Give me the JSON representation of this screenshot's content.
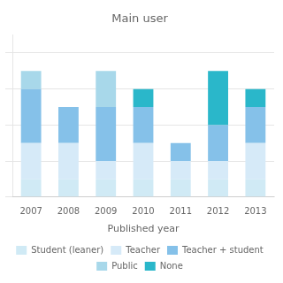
{
  "chart_data": {
    "type": "bar",
    "title": "Main user",
    "xlabel": "Published year",
    "categories": [
      "2007",
      "2008",
      "2009",
      "2010",
      "2011",
      "2012",
      "2013"
    ],
    "series": [
      {
        "name": "Student (leaner)",
        "color": "#d0eaf5",
        "values": [
          1,
          1,
          1,
          1,
          1,
          1,
          1
        ]
      },
      {
        "name": "Teacher",
        "color": "#d6eaf8",
        "values": [
          2,
          2,
          1,
          2,
          1,
          1,
          2
        ]
      },
      {
        "name": "Teacher + student",
        "color": "#85c1e9",
        "values": [
          3,
          2,
          3,
          2,
          1,
          2,
          2
        ]
      },
      {
        "name": "Public",
        "color": "#a8d8ea",
        "values": [
          1,
          0,
          2,
          0,
          0,
          0,
          0
        ]
      },
      {
        "name": "None",
        "color": "#2ab7ca",
        "values": [
          0,
          0,
          0,
          1,
          0,
          3,
          1
        ]
      }
    ],
    "stacked": true,
    "ylim": [
      0,
      9
    ],
    "yticks": [
      0,
      2,
      4,
      6,
      8
    ],
    "grid": true,
    "legend": "bottom",
    "tick_labels": "x"
  }
}
